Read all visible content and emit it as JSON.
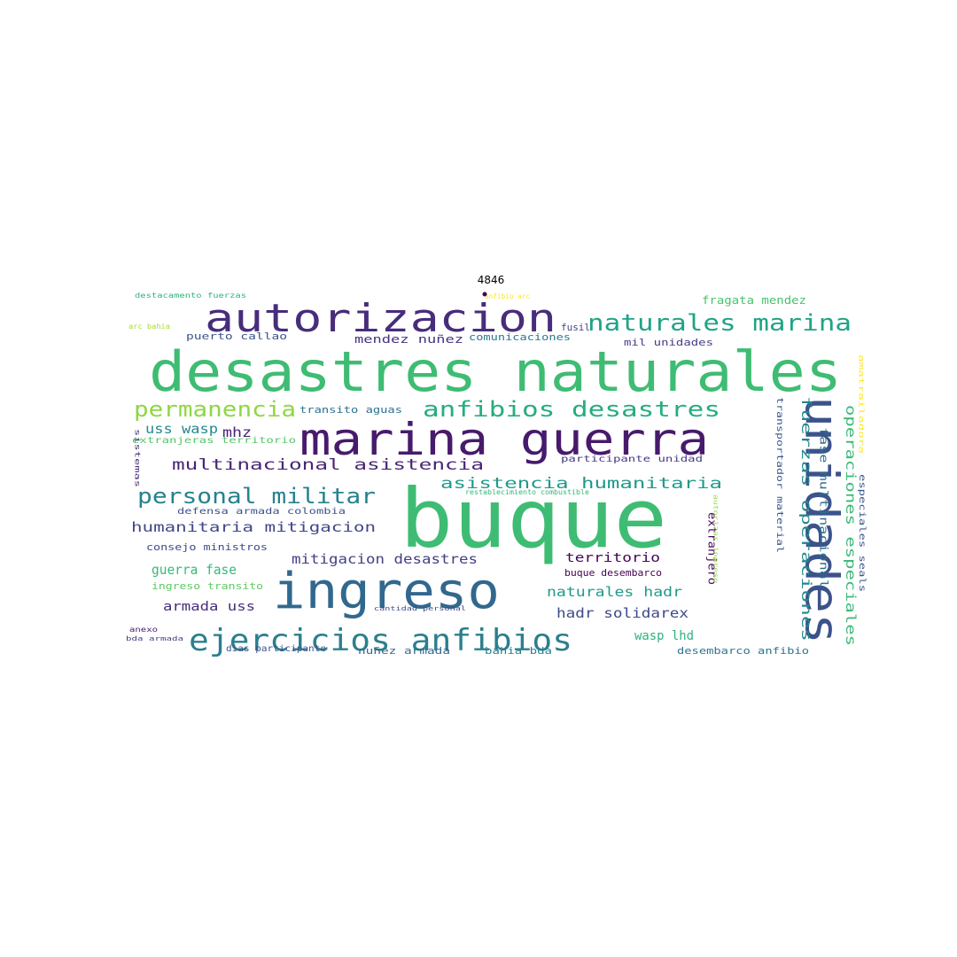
{
  "figure": {
    "title": "4846",
    "words": [
      {
        "text": "desastres naturales",
        "color": "#3fbc73"
      },
      {
        "text": "buque",
        "color": "#3fbc73"
      },
      {
        "text": "marina guerra",
        "color": "#471a6c"
      },
      {
        "text": "autorizacion",
        "color": "#472d7b"
      },
      {
        "text": "ingreso",
        "color": "#31688e"
      },
      {
        "text": "unidades",
        "color": "#3b528b"
      },
      {
        "text": "ejercicios anfibios",
        "color": "#2b7f8e"
      },
      {
        "text": "naturales marina",
        "color": "#20a386"
      },
      {
        "text": "anfibios desastres",
        "color": "#26ad81"
      },
      {
        "text": "permanencia",
        "color": "#8fd744"
      },
      {
        "text": "personal militar",
        "color": "#26828e"
      },
      {
        "text": "multinacional asistencia",
        "color": "#482475"
      },
      {
        "text": "asistencia humanitaria",
        "color": "#1f988b"
      },
      {
        "text": "humanitaria mitigacion",
        "color": "#404688"
      },
      {
        "text": "mitigacion desastres",
        "color": "#424086"
      },
      {
        "text": "fuerzas operaciones",
        "color": "#24868e"
      },
      {
        "text": "operaciones especiales",
        "color": "#3aba76"
      },
      {
        "text": "fase multinacional",
        "color": "#2d708e"
      },
      {
        "text": "naturales hadr",
        "color": "#1f9a8a"
      },
      {
        "text": "hadr solidarex",
        "color": "#3e4989"
      },
      {
        "text": "fragata mendez",
        "color": "#4ac16d"
      },
      {
        "text": "mendez nuñez",
        "color": "#46327e"
      },
      {
        "text": "puerto callao",
        "color": "#3b528b"
      },
      {
        "text": "comunicaciones",
        "color": "#2a788e"
      },
      {
        "text": "mil unidades",
        "color": "#433e85"
      },
      {
        "text": "transito aguas",
        "color": "#2c728e"
      },
      {
        "text": "uss wasp",
        "color": "#23898e"
      },
      {
        "text": "mhz",
        "color": "#482173"
      },
      {
        "text": "guerra fase",
        "color": "#37b878"
      },
      {
        "text": "armada uss",
        "color": "#472c7a"
      },
      {
        "text": "territorio",
        "color": "#450559"
      },
      {
        "text": "buque desembarco",
        "color": "#440154"
      },
      {
        "text": "wasp lhd",
        "color": "#2db27d"
      },
      {
        "text": "desembarco anfibio",
        "color": "#2a768e"
      },
      {
        "text": "especiales seals",
        "color": "#39568c"
      },
      {
        "text": "transportador material",
        "color": "#39568c"
      },
      {
        "text": "extranjero",
        "color": "#46085c"
      },
      {
        "text": "fusil",
        "color": "#414487"
      },
      {
        "text": "consejo ministros",
        "color": "#3e4a89"
      },
      {
        "text": "defensa armada colombia",
        "color": "#3b528b"
      },
      {
        "text": "ingreso transito",
        "color": "#5ec962"
      },
      {
        "text": "participante unidad",
        "color": "#443983"
      },
      {
        "text": "destacamento fuerzas",
        "color": "#2fb47c"
      },
      {
        "text": "anfibio arc",
        "color": "#fde725"
      },
      {
        "text": "arc bahia",
        "color": "#aadc32"
      },
      {
        "text": "extranjeras territorio",
        "color": "#55c667"
      },
      {
        "text": "restablecimiento combustible",
        "color": "#35b779"
      },
      {
        "text": "cantidad personal",
        "color": "#3e4a89"
      },
      {
        "text": "nuñez armada",
        "color": "#31688e"
      },
      {
        "text": "bahia bda",
        "color": "#27808e"
      },
      {
        "text": "dias participante",
        "color": "#3b528b"
      },
      {
        "text": "anexo",
        "color": "#482071"
      },
      {
        "text": "bda armada",
        "color": "#433e85"
      },
      {
        "text": "sistemas",
        "color": "#472c7a"
      },
      {
        "text": "autorizar ingreso",
        "color": "#95d840"
      },
      {
        "text": "amatrailadora",
        "color": "#fde725"
      }
    ]
  }
}
